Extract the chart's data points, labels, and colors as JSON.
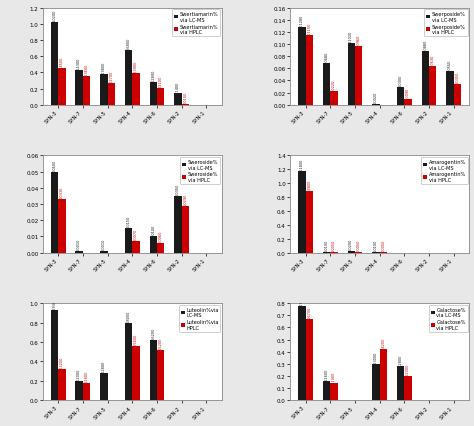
{
  "categories": [
    "SYN-3",
    "SYN-7",
    "SYN-5",
    "SYN-4",
    "SYN-6",
    "SYN-2",
    "SYN-1"
  ],
  "subplots": [
    {
      "legend_black": "Swertiamarin%\nvia LC-MS",
      "legend_red": "Swertiamarin%\nvia HPLC",
      "ylim": [
        0,
        1.2
      ],
      "yticks": [
        0,
        0.2,
        0.4,
        0.6,
        0.8,
        1.0,
        1.2
      ],
      "black_values": [
        1.02,
        0.43,
        0.38,
        0.68,
        0.28,
        0.14,
        0.0
      ],
      "red_values": [
        0.45,
        0.36,
        0.27,
        0.39,
        0.21,
        0.015,
        0.0
      ]
    },
    {
      "legend_black": "Swerposide%\nvia LC-MS",
      "legend_red": "Swerposide%\nvia HPLC",
      "ylim": [
        0,
        0.16
      ],
      "yticks": [
        0,
        0.02,
        0.04,
        0.06,
        0.08,
        0.1,
        0.12,
        0.14,
        0.16
      ],
      "black_values": [
        0.128,
        0.068,
        0.102,
        0.002,
        0.03,
        0.088,
        0.055
      ],
      "red_values": [
        0.115,
        0.022,
        0.096,
        0.0,
        0.009,
        0.063,
        0.035
      ]
    },
    {
      "legend_black": "Sweroside%\nvia LC-MS",
      "legend_red": "Sweroside%\nvia HPLC",
      "ylim": [
        0,
        0.06
      ],
      "yticks": [
        0,
        0.01,
        0.02,
        0.03,
        0.04,
        0.05,
        0.06
      ],
      "black_values": [
        0.05,
        0.001,
        0.001,
        0.015,
        0.01,
        0.035,
        0.0
      ],
      "red_values": [
        0.033,
        0.0,
        0.0,
        0.007,
        0.006,
        0.029,
        0.0
      ]
    },
    {
      "legend_black": "Amarogentin%\nvia LC-MS",
      "legend_red": "Amarogentin%\nvia HPLC",
      "ylim": [
        0,
        1.4
      ],
      "yticks": [
        0,
        0.2,
        0.4,
        0.6,
        0.8,
        1.0,
        1.2,
        1.4
      ],
      "black_values": [
        1.18,
        0.01,
        0.02,
        0.01,
        0.0,
        0.0,
        0.0
      ],
      "red_values": [
        0.88,
        0.005,
        0.005,
        0.005,
        0.0,
        0.0,
        0.0
      ]
    },
    {
      "legend_black": "Luteolin%via\nLC-MS",
      "legend_red": "Luteolin%via\nHPLC",
      "ylim": [
        0,
        1.0
      ],
      "yticks": [
        0,
        0.2,
        0.4,
        0.6,
        0.8,
        1.0
      ],
      "black_values": [
        0.93,
        0.2,
        0.28,
        0.8,
        0.62,
        0.0,
        0.0
      ],
      "red_values": [
        0.32,
        0.18,
        0.0,
        0.56,
        0.52,
        0.0,
        0.0
      ]
    },
    {
      "legend_black": "Galactose%\nvia LC-MS",
      "legend_red": "Galactose%\nvia HPLC",
      "ylim": [
        0,
        0.8
      ],
      "yticks": [
        0,
        0.1,
        0.2,
        0.3,
        0.4,
        0.5,
        0.6,
        0.7,
        0.8
      ],
      "black_values": [
        0.78,
        0.16,
        0.0,
        0.3,
        0.28,
        0.0,
        0.0
      ],
      "red_values": [
        0.67,
        0.14,
        0.0,
        0.42,
        0.2,
        0.0,
        0.0
      ]
    }
  ],
  "bar_width": 0.3,
  "black_color": "#1a1a1a",
  "red_color": "#cc0000",
  "figure_facecolor": "#e8e8e8",
  "panel_facecolor": "#ffffff"
}
